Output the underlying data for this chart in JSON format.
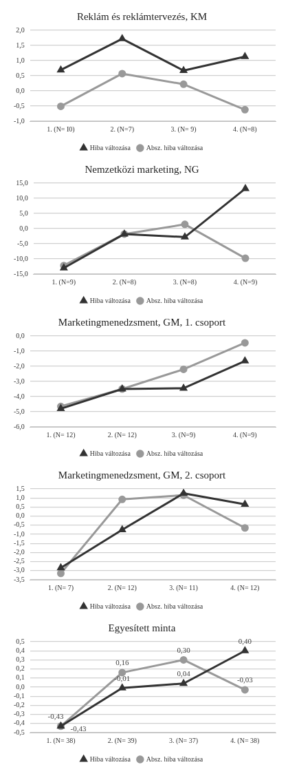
{
  "chart_data": [
    {
      "type": "line",
      "title": "Reklám és reklámtervezés, KM",
      "categories": [
        "1. (N= I0)",
        "2. (N=7)",
        "3. (N= 9)",
        "4. (N=8)"
      ],
      "series": [
        {
          "name": "Hiba változása",
          "color": "#333333",
          "marker": "triangle",
          "values": [
            0.69,
            1.72,
            0.67,
            1.13
          ]
        },
        {
          "name": "Absz. hiba változása",
          "color": "#999999",
          "marker": "circle",
          "values": [
            -0.51,
            0.57,
            0.22,
            -0.62
          ]
        }
      ],
      "ylim": [
        -1,
        2
      ],
      "yticks": [
        {
          "value": -1,
          "label": "-1,0"
        },
        {
          "value": -0.5,
          "label": "-0,5"
        },
        {
          "value": 0,
          "label": "0,0"
        },
        {
          "value": 0.5,
          "label": "0,5"
        },
        {
          "value": 1,
          "label": "1,0"
        },
        {
          "value": 1.5,
          "label": "1,5"
        },
        {
          "value": 2,
          "label": "2,0"
        }
      ],
      "grid": "y",
      "legend": "bottom",
      "line_style": "solid"
    },
    {
      "type": "line",
      "title": "Nemzetközi marketing, NG",
      "categories": [
        "1. (N=9)",
        "2. (N=8)",
        "3. (N=8)",
        "4. (N=9)"
      ],
      "series": [
        {
          "name": "Hiba változása",
          "color": "#333333",
          "marker": "triangle",
          "values": [
            -13.0,
            -1.8,
            -2.8,
            13.2
          ]
        },
        {
          "name": "Absz. hiba változása",
          "color": "#999999",
          "marker": "circle",
          "values": [
            -12.2,
            -1.8,
            1.4,
            -9.8
          ]
        }
      ],
      "ylim": [
        -15,
        15
      ],
      "yticks": [
        {
          "value": -15,
          "label": "-15,0"
        },
        {
          "value": -10,
          "label": "-10,0"
        },
        {
          "value": -5,
          "label": "-5,0"
        },
        {
          "value": 0,
          "label": "0,0"
        },
        {
          "value": 5,
          "label": "5,0"
        },
        {
          "value": 10,
          "label": "10,0"
        },
        {
          "value": 15,
          "label": "15,0"
        }
      ],
      "grid": "y",
      "legend": "bottom",
      "line_style": "solid"
    },
    {
      "type": "line",
      "title": "Marketingmenedzsment, GM, 1. csoport",
      "categories": [
        "1. (N= 12)",
        "2. (N= 12)",
        "3. (N=9)",
        "4. (N=9)"
      ],
      "series": [
        {
          "name": "Hiba változása",
          "color": "#333333",
          "marker": "triangle",
          "values": [
            -4.8,
            -3.5,
            -3.45,
            -1.65
          ]
        },
        {
          "name": "Absz. hiba változása",
          "color": "#999999",
          "marker": "circle",
          "values": [
            -4.65,
            -3.5,
            -2.2,
            -0.45
          ]
        }
      ],
      "ylim": [
        -6,
        0
      ],
      "yticks": [
        {
          "value": -6,
          "label": "-6,0"
        },
        {
          "value": -5,
          "label": "-5,0"
        },
        {
          "value": -4,
          "label": "-4,0"
        },
        {
          "value": -3,
          "label": "-3,0"
        },
        {
          "value": -2,
          "label": "-2,0"
        },
        {
          "value": -1,
          "label": "-1,0"
        },
        {
          "value": 0,
          "label": "0,0"
        }
      ],
      "grid": "y",
      "legend": "bottom",
      "line_style": "solid"
    },
    {
      "type": "line",
      "title": "Marketingmenedzsment, GM, 2. csoport",
      "categories": [
        "1. (N= 7)",
        "2. (N= 12)",
        "3. (N= 11)",
        "4. (N= 12)"
      ],
      "series": [
        {
          "name": "Hiba változása",
          "color": "#333333",
          "marker": "triangle",
          "values": [
            -2.85,
            -0.75,
            1.25,
            0.65
          ]
        },
        {
          "name": "Absz. hiba változása",
          "color": "#999999",
          "marker": "circle",
          "values": [
            -3.15,
            0.92,
            1.15,
            -0.65
          ]
        }
      ],
      "ylim": [
        -3.5,
        1.5
      ],
      "yticks": [
        {
          "value": -3.5,
          "label": "-3,5"
        },
        {
          "value": -3,
          "label": "-3,0"
        },
        {
          "value": -2.5,
          "label": "-2,5"
        },
        {
          "value": -2,
          "label": "-2,0"
        },
        {
          "value": -1.5,
          "label": "-1,5"
        },
        {
          "value": -1,
          "label": "-1,0"
        },
        {
          "value": -0.5,
          "label": "-0,5"
        },
        {
          "value": 0,
          "label": "0,0"
        },
        {
          "value": 0.5,
          "label": "0,5"
        },
        {
          "value": 1,
          "label": "1,0"
        },
        {
          "value": 1.5,
          "label": "1,5"
        }
      ],
      "grid": "y",
      "legend": "bottom",
      "line_style": "solid"
    },
    {
      "type": "line",
      "title": "Egyesített minta",
      "categories": [
        "1. (N= 38)",
        "2. (N= 39)",
        "3. (N= 37)",
        "4. (N= 38)"
      ],
      "series": [
        {
          "name": "Hiba változása",
          "color": "#333333",
          "marker": "triangle",
          "values": [
            -0.43,
            -0.01,
            0.04,
            0.4
          ],
          "value_labels": [
            "-0,43",
            "-0,01",
            "0,04",
            "0,40"
          ]
        },
        {
          "name": "Absz. hiba változása",
          "color": "#999999",
          "marker": "circle",
          "values": [
            -0.43,
            0.16,
            0.3,
            -0.03
          ],
          "value_labels": [
            "-0,43",
            "0,16",
            "0,30",
            "-0,03"
          ]
        }
      ],
      "ylim": [
        -0.5,
        0.5
      ],
      "yticks": [
        {
          "value": -0.5,
          "label": "-0,5"
        },
        {
          "value": -0.4,
          "label": "-0,4"
        },
        {
          "value": -0.3,
          "label": "-0,3"
        },
        {
          "value": -0.2,
          "label": "-0,2"
        },
        {
          "value": -0.1,
          "label": "-0,1"
        },
        {
          "value": 0,
          "label": "0,0"
        },
        {
          "value": 0.1,
          "label": "0,1"
        },
        {
          "value": 0.2,
          "label": "0,2"
        },
        {
          "value": 0.3,
          "label": "0,3"
        },
        {
          "value": 0.4,
          "label": "0,4"
        },
        {
          "value": 0.5,
          "label": "0,5"
        }
      ],
      "grid": "y",
      "legend": "bottom",
      "line_style": "solid"
    }
  ]
}
